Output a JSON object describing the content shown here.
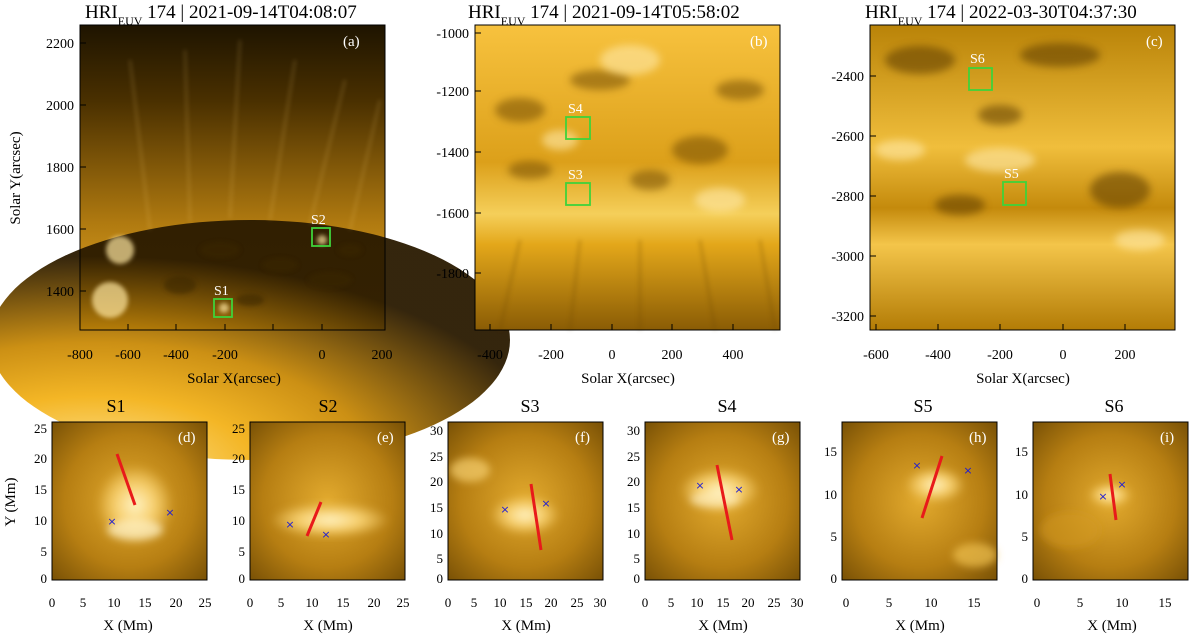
{
  "colors": {
    "box": "#3fd23a",
    "slit": "#e81a1a",
    "cross": "#1a1ad8",
    "solar_bright": "#ffd36a",
    "solar_mid": "#d99a0a",
    "solar_dark": "#3d2600"
  },
  "top_panels": [
    {
      "title_main": "HRI",
      "title_sub": "EUV",
      "title_rest": " 174 | 2021-09-14T04:08:07",
      "letter": "(a)",
      "xlabel": "Solar X(arcsec)",
      "ylabel": "Solar Y(arcsec)",
      "xticks": [
        "-800",
        "-600",
        "-400",
        "-200",
        "0",
        "200"
      ],
      "yticks": [
        "2200",
        "2000",
        "1800",
        "1600",
        "1400"
      ],
      "boxes": [
        {
          "label": "S2"
        },
        {
          "label": "S1"
        }
      ]
    },
    {
      "title_main": "HRI",
      "title_sub": "EUV",
      "title_rest": " 174 | 2021-09-14T05:58:02",
      "letter": "(b)",
      "xlabel": "Solar X(arcsec)",
      "ylabel": "",
      "xticks": [
        "-400",
        "-200",
        "0",
        "200",
        "400"
      ],
      "yticks": [
        "-1000",
        "-1200",
        "-1400",
        "-1600",
        "-1800"
      ],
      "boxes": [
        {
          "label": "S4"
        },
        {
          "label": "S3"
        }
      ]
    },
    {
      "title_main": "HRI",
      "title_sub": "EUV",
      "title_rest": " 174 | 2022-03-30T04:37:30",
      "letter": "(c)",
      "xlabel": "Solar X(arcsec)",
      "ylabel": "",
      "xticks": [
        "-600",
        "-400",
        "-200",
        "0",
        "200"
      ],
      "yticks": [
        "-2400",
        "-2600",
        "-2800",
        "-3000",
        "-3200"
      ],
      "boxes": [
        {
          "label": "S6"
        },
        {
          "label": "S5"
        }
      ]
    }
  ],
  "bottom_panels": [
    {
      "title": "S1",
      "letter": "(d)",
      "xticks": [
        "0",
        "5",
        "10",
        "15",
        "20",
        "25"
      ],
      "yticks": [
        "25",
        "20",
        "15",
        "10",
        "5",
        "0"
      ],
      "xlabel": "X (Mm)",
      "ylabel": "Y (Mm)"
    },
    {
      "title": "S2",
      "letter": "(e)",
      "xticks": [
        "0",
        "5",
        "10",
        "15",
        "20",
        "25"
      ],
      "yticks": [
        "25",
        "20",
        "15",
        "10",
        "5",
        "0"
      ],
      "xlabel": "X (Mm)",
      "ylabel": ""
    },
    {
      "title": "S3",
      "letter": "(f)",
      "xticks": [
        "0",
        "5",
        "10",
        "15",
        "20",
        "25",
        "30"
      ],
      "yticks": [
        "30",
        "25",
        "20",
        "15",
        "10",
        "5",
        "0"
      ],
      "xlabel": "X (Mm)",
      "ylabel": ""
    },
    {
      "title": "S4",
      "letter": "(g)",
      "xticks": [
        "0",
        "5",
        "10",
        "15",
        "20",
        "25",
        "30"
      ],
      "yticks": [
        "30",
        "25",
        "20",
        "15",
        "10",
        "5",
        "0"
      ],
      "xlabel": "X (Mm)",
      "ylabel": ""
    },
    {
      "title": "S5",
      "letter": "(h)",
      "xticks": [
        "0",
        "5",
        "10",
        "15"
      ],
      "yticks": [
        "15",
        "10",
        "5",
        "0"
      ],
      "xlabel": "X (Mm)",
      "ylabel": ""
    },
    {
      "title": "S6",
      "letter": "(i)",
      "xticks": [
        "0",
        "5",
        "10",
        "15"
      ],
      "yticks": [
        "15",
        "10",
        "5",
        "0"
      ],
      "xlabel": "X (Mm)",
      "ylabel": ""
    }
  ]
}
